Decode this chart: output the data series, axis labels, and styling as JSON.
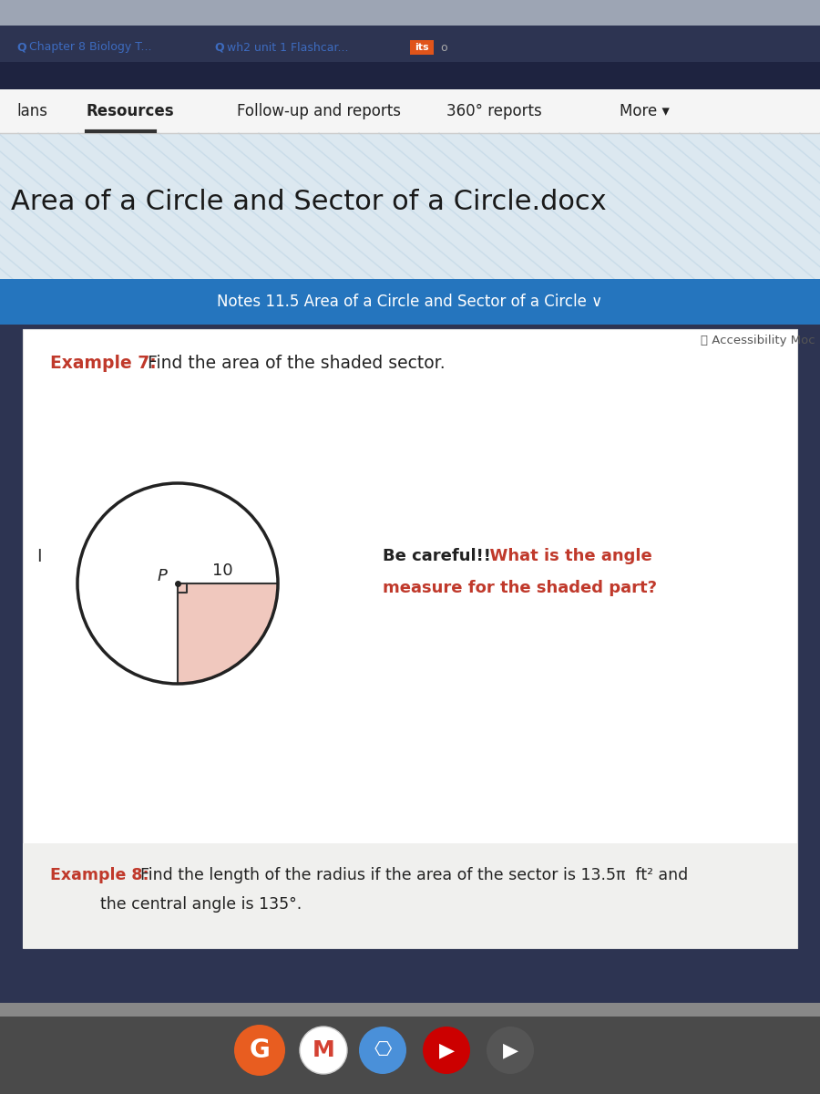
{
  "bg_top_bar": "#2d3452",
  "bg_dark_strip": "#1e2340",
  "bg_nav": "#f7f7f7",
  "bg_watermark": "#dce8f0",
  "bg_title_area": "#dce8f0",
  "bg_blue_banner": "#2575be",
  "bg_content": "#ffffff",
  "bg_example8": "#f5f5f5",
  "bg_taskbar": "#c8c8c8",
  "tab1_text": "Chapter 8 Biology T...",
  "tab2_text": "wh2 unit 1 Flashcar...",
  "badge_text": "its",
  "badge_bg": "#e0541a",
  "tab_num": "o",
  "nav_items": [
    "lans",
    "Resources",
    "Follow-up and reports",
    "360° reports",
    "More ▾"
  ],
  "nav_bold": "Resources",
  "file_title": "Area of a Circle and Sector of a Circle.docx",
  "blue_banner_text": "Notes 11.5 Area of a Circle and Sector of a Circle ∨",
  "accessibility_text": "📄 Accessibility Moc",
  "ex7_label": "Example 7:",
  "ex7_text": "  Find the area of the shaded sector.",
  "caution_black": "Be careful!!",
  "caution_red1": "  What is the angle",
  "caution_red2": "measure for the shaded part?",
  "point_label": "P",
  "radius_label": "10",
  "cursor_label": "I",
  "sector_fill": "#f0c8be",
  "sector_edge": "#333333",
  "circle_edge": "#222222",
  "ex8_label": "Example 8:",
  "ex8_text1": "  Find the length of the radius if the area of the sector is 13.5π  ft² and",
  "ex8_text2": "the central angle is 135°.",
  "red_color": "#c0392b",
  "dark_text": "#222222",
  "watermark_line_color": "#c5d9e8",
  "nav_underline_color": "#333333"
}
